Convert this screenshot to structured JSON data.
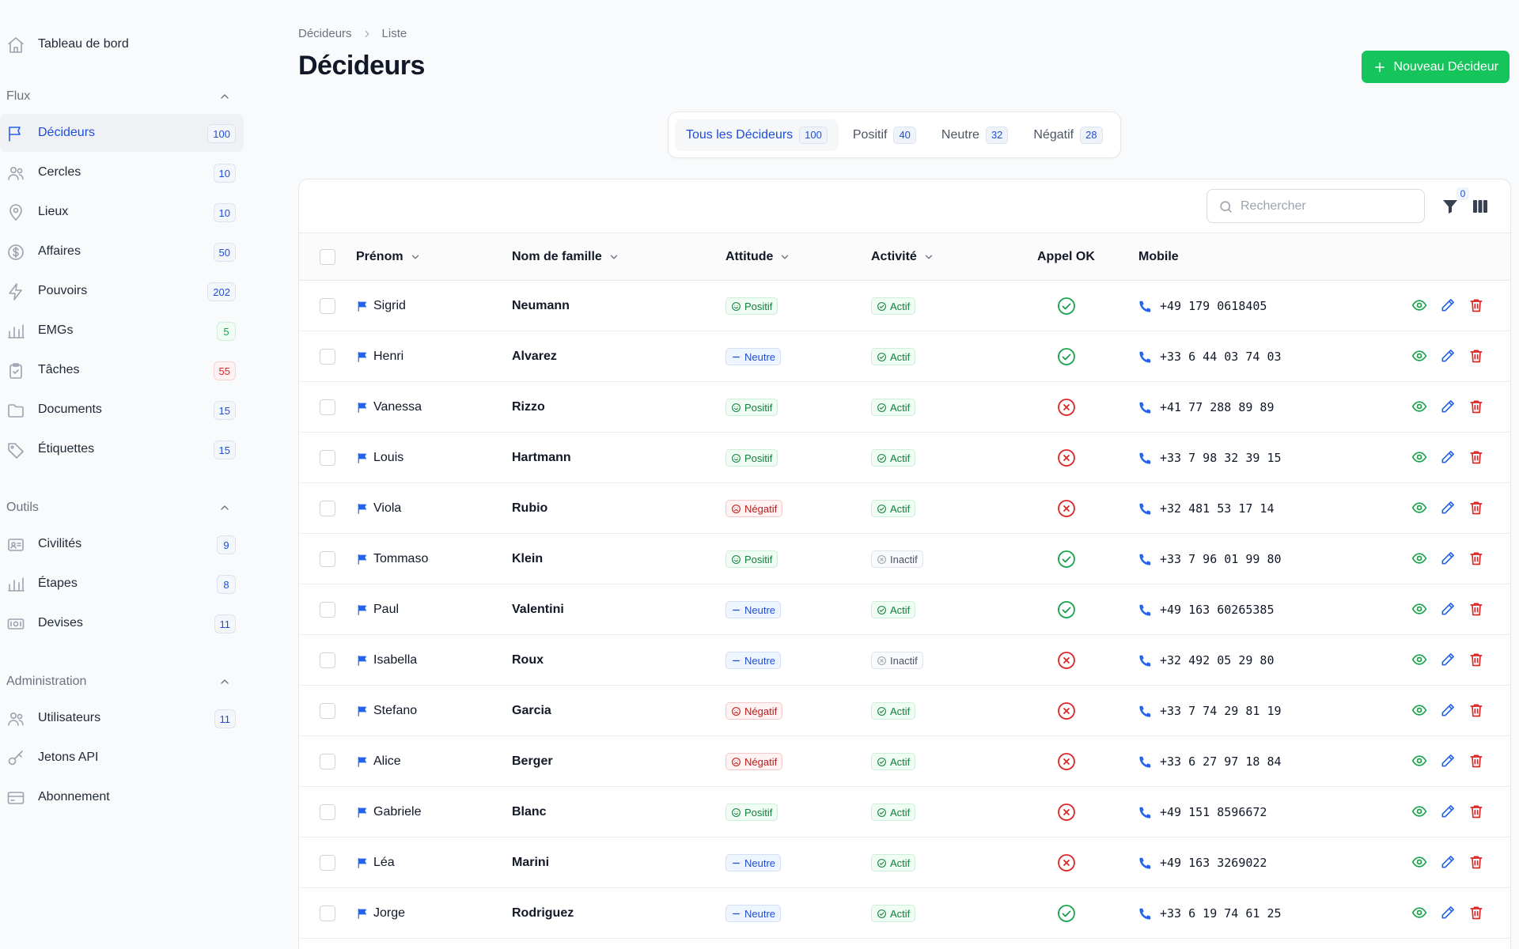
{
  "sidebar": {
    "dashboard": {
      "label": "Tableau de bord",
      "icon": "home-icon"
    },
    "groups": [
      {
        "title": "Flux",
        "items": [
          {
            "label": "Décideurs",
            "count": "100",
            "icon": "flag-icon",
            "active": true
          },
          {
            "label": "Cercles",
            "count": "10",
            "icon": "users-icon"
          },
          {
            "label": "Lieux",
            "count": "10",
            "icon": "map-pin-icon"
          },
          {
            "label": "Affaires",
            "count": "50",
            "icon": "dollar-icon"
          },
          {
            "label": "Pouvoirs",
            "count": "202",
            "icon": "bolt-icon"
          },
          {
            "label": "EMGs",
            "count": "5",
            "icon": "bar-chart-icon",
            "badge": "green"
          },
          {
            "label": "Tâches",
            "count": "55",
            "icon": "clipboard-icon",
            "badge": "red"
          },
          {
            "label": "Documents",
            "count": "15",
            "icon": "folder-icon"
          },
          {
            "label": "Étiquettes",
            "count": "15",
            "icon": "tag-icon"
          }
        ]
      },
      {
        "title": "Outils",
        "items": [
          {
            "label": "Civilités",
            "count": "9",
            "icon": "id-card-icon"
          },
          {
            "label": "Étapes",
            "count": "8",
            "icon": "bar-chart-icon"
          },
          {
            "label": "Devises",
            "count": "11",
            "icon": "banknote-icon"
          }
        ]
      },
      {
        "title": "Administration",
        "items": [
          {
            "label": "Utilisateurs",
            "count": "11",
            "icon": "users-icon"
          },
          {
            "label": "Jetons API",
            "count": null,
            "icon": "key-icon"
          },
          {
            "label": "Abonnement",
            "count": null,
            "icon": "credit-card-icon"
          }
        ]
      }
    ]
  },
  "header": {
    "breadcrumb": [
      "Décideurs",
      "Liste"
    ],
    "title": "Décideurs",
    "new_button": "Nouveau Décideur"
  },
  "tabs": [
    {
      "label": "Tous les Décideurs",
      "count": "100",
      "active": true
    },
    {
      "label": "Positif",
      "count": "40"
    },
    {
      "label": "Neutre",
      "count": "32"
    },
    {
      "label": "Négatif",
      "count": "28"
    }
  ],
  "toolbar": {
    "search_placeholder": "Rechercher",
    "filter_count": "0"
  },
  "table": {
    "columns": {
      "first_name": "Prénom",
      "last_name": "Nom de famille",
      "attitude": "Attitude",
      "activity": "Activité",
      "call_ok": "Appel OK",
      "mobile": "Mobile"
    },
    "rows": [
      {
        "first": "Sigrid",
        "last": "Neumann",
        "attitude": "Positif",
        "activity": "Actif",
        "call_ok": true,
        "mobile": "+49 179 0618405"
      },
      {
        "first": "Henri",
        "last": "Alvarez",
        "attitude": "Neutre",
        "activity": "Actif",
        "call_ok": true,
        "mobile": "+33 6 44 03 74 03"
      },
      {
        "first": "Vanessa",
        "last": "Rizzo",
        "attitude": "Positif",
        "activity": "Actif",
        "call_ok": false,
        "mobile": "+41 77 288 89 89"
      },
      {
        "first": "Louis",
        "last": "Hartmann",
        "attitude": "Positif",
        "activity": "Actif",
        "call_ok": false,
        "mobile": "+33 7 98 32 39 15"
      },
      {
        "first": "Viola",
        "last": "Rubio",
        "attitude": "Négatif",
        "activity": "Actif",
        "call_ok": false,
        "mobile": "+32 481 53 17 14"
      },
      {
        "first": "Tommaso",
        "last": "Klein",
        "attitude": "Positif",
        "activity": "Inactif",
        "call_ok": true,
        "mobile": "+33 7 96 01 99 80"
      },
      {
        "first": "Paul",
        "last": "Valentini",
        "attitude": "Neutre",
        "activity": "Actif",
        "call_ok": true,
        "mobile": "+49 163 60265385"
      },
      {
        "first": "Isabella",
        "last": "Roux",
        "attitude": "Neutre",
        "activity": "Inactif",
        "call_ok": false,
        "mobile": "+32 492 05 29 80"
      },
      {
        "first": "Stefano",
        "last": "Garcia",
        "attitude": "Négatif",
        "activity": "Actif",
        "call_ok": false,
        "mobile": "+33 7 74 29 81 19"
      },
      {
        "first": "Alice",
        "last": "Berger",
        "attitude": "Négatif",
        "activity": "Actif",
        "call_ok": false,
        "mobile": "+33 6 27 97 18 84"
      },
      {
        "first": "Gabriele",
        "last": "Blanc",
        "attitude": "Positif",
        "activity": "Actif",
        "call_ok": false,
        "mobile": "+49 151 8596672"
      },
      {
        "first": "Léa",
        "last": "Marini",
        "attitude": "Neutre",
        "activity": "Actif",
        "call_ok": false,
        "mobile": "+49 163 3269022"
      },
      {
        "first": "Jorge",
        "last": "Rodriguez",
        "attitude": "Neutre",
        "activity": "Actif",
        "call_ok": true,
        "mobile": "+33 6 19 74 61 25"
      }
    ]
  },
  "colors": {
    "accent": "#2563eb",
    "primary_button": "#16c45c",
    "positive": "#15803d",
    "negative": "#dc2626"
  }
}
